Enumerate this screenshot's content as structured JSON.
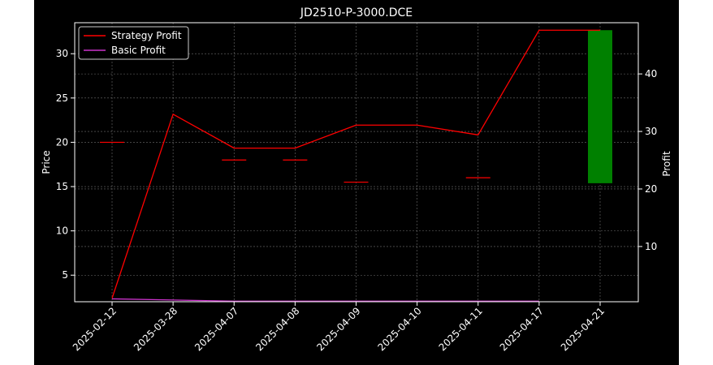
{
  "chart_data": {
    "type": "line",
    "title": "JD2510-P-3000.DCE",
    "ylabel_left": "Price",
    "ylabel_right": "Profit",
    "categories": [
      "2025-02-12",
      "2025-03-28",
      "2025-04-07",
      "2025-04-08",
      "2025-04-09",
      "2025-04-10",
      "2025-04-11",
      "2025-04-17",
      "2025-04-21"
    ],
    "ylim_left": [
      2.0,
      33.5
    ],
    "ylim_right": [
      0.4,
      48.9
    ],
    "yticks_left": [
      "5",
      "10",
      "15",
      "20",
      "25",
      "30"
    ],
    "yticks_right": [
      "10",
      "20",
      "30",
      "40"
    ],
    "grid": true,
    "legend_position": "upper-left",
    "series": [
      {
        "name": "Strategy Profit",
        "axis": "right",
        "color": "#ff0000",
        "values": [
          1.0,
          33.0,
          27.1,
          27.1,
          31.1,
          31.1,
          29.4,
          47.6,
          47.6
        ]
      },
      {
        "name": "Basic Profit",
        "axis": "right",
        "color": "#cc33cc",
        "values": [
          0.9,
          0.7,
          0.5,
          0.5,
          0.5,
          0.5,
          0.5,
          0.5,
          null
        ]
      }
    ],
    "price_markers": [
      {
        "category": "2025-02-12",
        "value": 20.0
      },
      {
        "category": "2025-04-07",
        "value": 18.0
      },
      {
        "category": "2025-04-08",
        "value": 18.0
      },
      {
        "category": "2025-04-09",
        "value": 15.5
      },
      {
        "category": "2025-04-11",
        "value": 16.0
      }
    ],
    "profit_bar": {
      "category": "2025-04-21",
      "from": 21.0,
      "to": 47.6,
      "color": "#008000"
    },
    "colors": {
      "background": "#000000",
      "axes": "#ffffff",
      "text": "#ffffff",
      "grid": "#9e9e9e",
      "marker": "#ff0000"
    }
  }
}
